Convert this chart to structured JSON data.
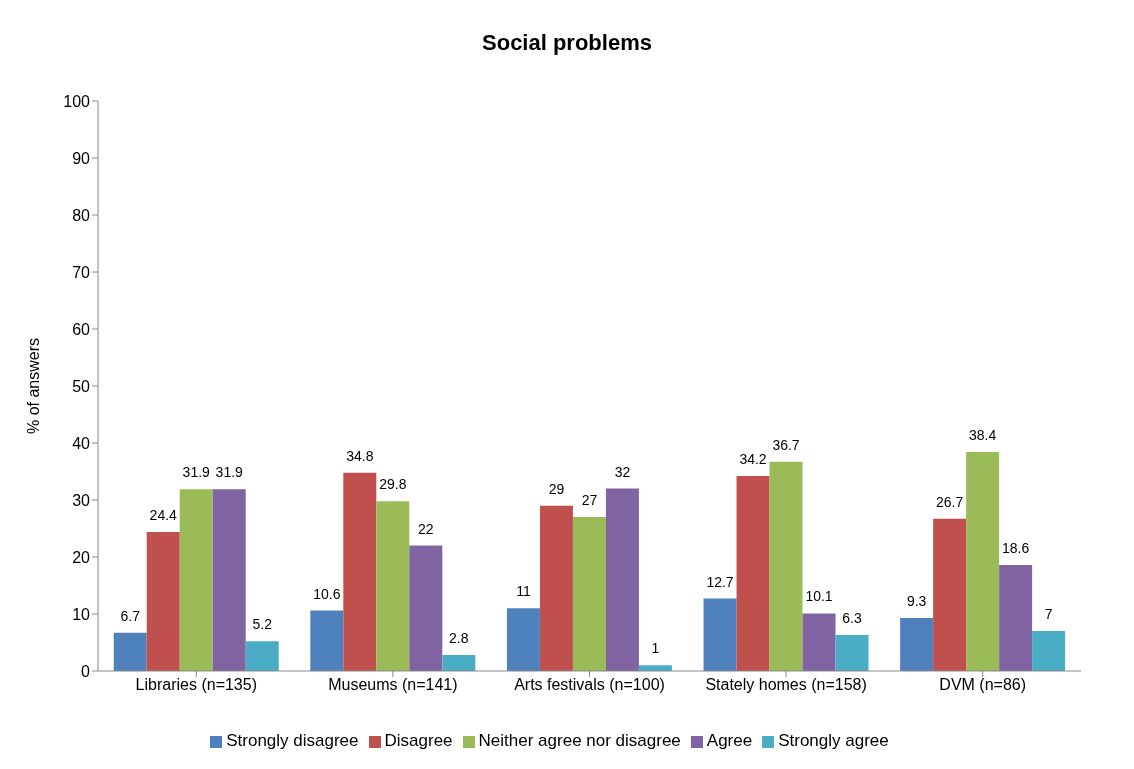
{
  "chart_data": {
    "type": "bar",
    "title": "Social problems",
    "ylabel": "% of answers",
    "categories": [
      "Libraries (n=135)",
      "Museums (n=141)",
      "Arts festivals (n=100)",
      "Stately homes (n=158)",
      "DVM (n=86)"
    ],
    "series": [
      {
        "name": "Strongly disagree",
        "color": "#4f81bd",
        "values": [
          6.7,
          10.6,
          11,
          12.7,
          9.3
        ]
      },
      {
        "name": "Disagree",
        "color": "#c0504d",
        "values": [
          24.4,
          34.8,
          29,
          34.2,
          26.7
        ]
      },
      {
        "name": "Neither agree nor disagree",
        "color": "#9bbb59",
        "values": [
          31.9,
          29.8,
          27,
          36.7,
          38.4
        ]
      },
      {
        "name": "Agree",
        "color": "#8064a2",
        "values": [
          31.9,
          22,
          32,
          10.1,
          18.6
        ]
      },
      {
        "name": "Strongly agree",
        "color": "#4bacc6",
        "values": [
          5.2,
          2.8,
          1,
          6.3,
          7
        ]
      }
    ],
    "ylim": [
      0,
      100
    ],
    "yticks": [
      0,
      10,
      20,
      30,
      40,
      50,
      60,
      70,
      80,
      90,
      100
    ],
    "grid": false,
    "legend": "bottom",
    "data_labels": true
  }
}
